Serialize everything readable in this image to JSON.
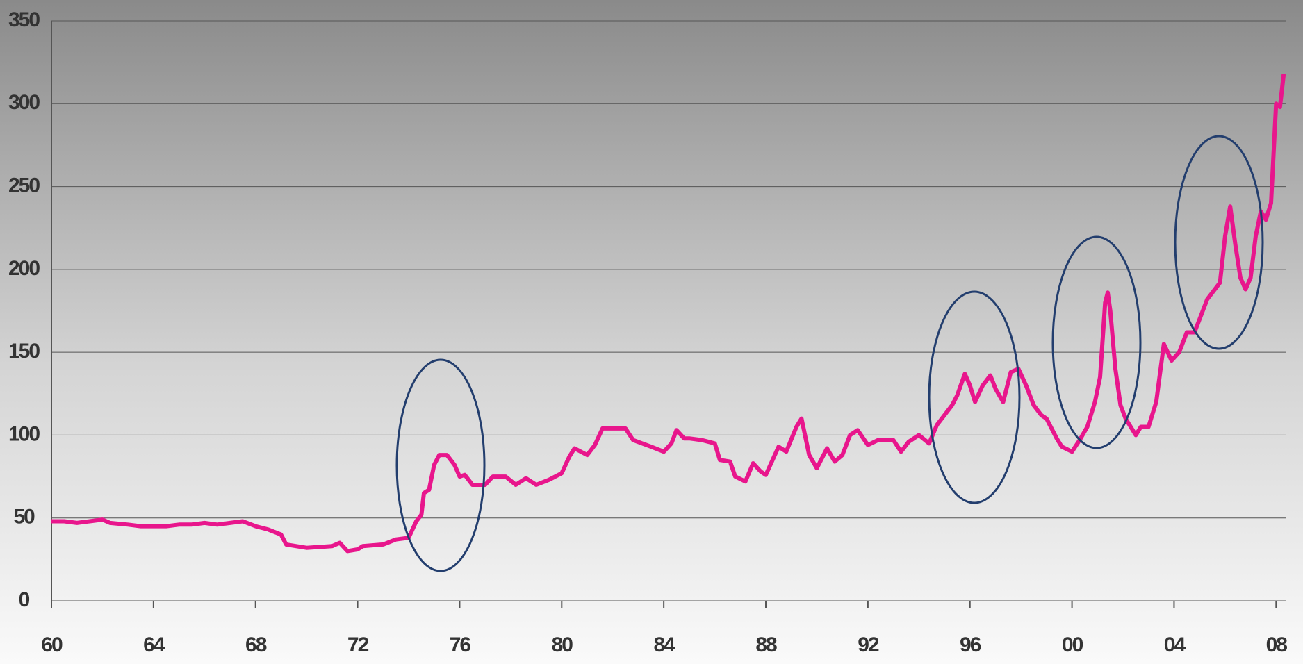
{
  "chart_data": {
    "type": "line",
    "xlim": [
      1960,
      2008.4
    ],
    "ylim": [
      0,
      350
    ],
    "yticks": [
      0,
      50,
      100,
      150,
      200,
      250,
      300,
      350
    ],
    "xticks": [
      {
        "value": 1960,
        "label": "60"
      },
      {
        "value": 1964,
        "label": "64"
      },
      {
        "value": 1968,
        "label": "68"
      },
      {
        "value": 1972,
        "label": "72"
      },
      {
        "value": 1976,
        "label": "76"
      },
      {
        "value": 1980,
        "label": "80"
      },
      {
        "value": 1984,
        "label": "84"
      },
      {
        "value": 1988,
        "label": "88"
      },
      {
        "value": 1992,
        "label": "92"
      },
      {
        "value": 1996,
        "label": "96"
      },
      {
        "value": 2000,
        "label": "00"
      },
      {
        "value": 2004,
        "label": "04"
      },
      {
        "value": 2008,
        "label": "08"
      }
    ],
    "grid": true,
    "series": [
      {
        "color": "#e8168c",
        "x": [
          1960,
          1960.5,
          1961,
          1961.5,
          1962,
          1962.3,
          1963,
          1963.5,
          1964,
          1964.5,
          1965,
          1965.5,
          1966,
          1966.5,
          1967,
          1967.5,
          1968,
          1968.5,
          1969,
          1969.2,
          1970,
          1971,
          1971.3,
          1971.6,
          1972,
          1972.2,
          1973,
          1973.5,
          1974,
          1974.3,
          1974.5,
          1974.6,
          1974.8,
          1975,
          1975.2,
          1975.5,
          1975.8,
          1976,
          1976.2,
          1976.5,
          1977,
          1977.3,
          1977.8,
          1978.2,
          1978.6,
          1979,
          1979.5,
          1980,
          1980.3,
          1980.5,
          1981,
          1981.3,
          1981.6,
          1982,
          1982.5,
          1982.8,
          1983.5,
          1984,
          1984.3,
          1984.5,
          1984.8,
          1985,
          1985.5,
          1986,
          1986.2,
          1986.6,
          1986.8,
          1987.2,
          1987.5,
          1987.8,
          1988,
          1988.5,
          1988.8,
          1989.2,
          1989.4,
          1989.7,
          1990,
          1990.4,
          1990.7,
          1991,
          1991.3,
          1991.6,
          1992,
          1992.4,
          1993,
          1993.3,
          1993.6,
          1994,
          1994.4,
          1994.7,
          1995,
          1995.3,
          1995.5,
          1995.8,
          1996,
          1996.2,
          1996.5,
          1996.8,
          1997,
          1997.3,
          1997.6,
          1997.9,
          1998.2,
          1998.5,
          1998.8,
          1999,
          1999.4,
          1999.6,
          2000,
          2000.3,
          2000.6,
          2000.9,
          2001.1,
          2001.3,
          2001.4,
          2001.5,
          2001.7,
          2001.9,
          2002.1,
          2002.5,
          2002.7,
          2003,
          2003.3,
          2003.6,
          2003.9,
          2004.2,
          2004.5,
          2004.8,
          2005,
          2005.3,
          2005.6,
          2005.8,
          2006,
          2006.2,
          2006.4,
          2006.6,
          2006.8,
          2007,
          2007.2,
          2007.4,
          2007.6,
          2007.8,
          2008,
          2008.15,
          2008.3
        ],
        "values": [
          48,
          48,
          47,
          48,
          49,
          47,
          46,
          45,
          45,
          45,
          46,
          46,
          47,
          46,
          47,
          48,
          45,
          43,
          40,
          34,
          32,
          33,
          35,
          30,
          31,
          33,
          34,
          37,
          38,
          48,
          52,
          65,
          67,
          82,
          88,
          88,
          82,
          75,
          76,
          70,
          70,
          75,
          75,
          70,
          74,
          70,
          73,
          77,
          87,
          92,
          88,
          94,
          104,
          104,
          104,
          97,
          93,
          90,
          95,
          103,
          98,
          98,
          97,
          95,
          85,
          84,
          75,
          72,
          83,
          78,
          76,
          93,
          90,
          105,
          110,
          88,
          80,
          92,
          84,
          88,
          100,
          103,
          94,
          97,
          97,
          90,
          96,
          100,
          95,
          106,
          112,
          118,
          124,
          137,
          130,
          120,
          130,
          136,
          128,
          120,
          138,
          140,
          130,
          118,
          112,
          110,
          98,
          93,
          90,
          97,
          105,
          120,
          135,
          180,
          186,
          175,
          140,
          118,
          110,
          100,
          105,
          105,
          120,
          155,
          145,
          150,
          162,
          162,
          170,
          182,
          188,
          192,
          220,
          238,
          215,
          195,
          188,
          195,
          220,
          235,
          230,
          240,
          300,
          298,
          318
        ]
      }
    ]
  }
}
